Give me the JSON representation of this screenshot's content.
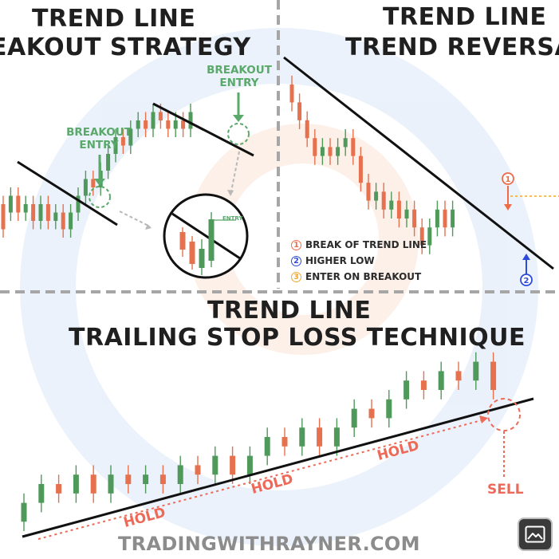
{
  "panels": {
    "top_left": {
      "title_line1": "TREND LINE",
      "title_line2": "EAKOUT STRATEGY",
      "breakout_label_1": "BREAKOUT\nENTRY",
      "breakout_label_2": "BREAKOUT\nENTRY",
      "mini_entry_label": "ENTRY"
    },
    "top_right": {
      "title_line1": "TREND LINE",
      "title_line2": "TREND REVERSA",
      "legend": [
        {
          "number": "1",
          "text": "BREAK OF TREND LINE",
          "color": "#ee6a48"
        },
        {
          "number": "2",
          "text": "HIGHER LOW",
          "color": "#2d4bd8"
        },
        {
          "number": "3",
          "text": "ENTER ON BREAKOUT",
          "color": "#f0a830"
        }
      ],
      "marker_1": "1",
      "marker_2": "2"
    },
    "bottom": {
      "title_line1": "TREND LINE",
      "title_line2": "TRAILING STOP LOSS TECHNIQUE",
      "hold_labels": [
        "HOLD",
        "HOLD",
        "HOLD"
      ],
      "sell_label": "SELL"
    }
  },
  "watermark": "TRADINGWITHRAYNER.COM",
  "colors": {
    "bull": "#4f9a5b",
    "bear": "#e5714e",
    "trendline": "#111111",
    "accent_green": "#5aa86a",
    "accent_red": "#ee6a58"
  },
  "icons": {
    "image_button": "image-icon"
  },
  "chart_data": [
    {
      "type": "candlestick",
      "panel": "top_left",
      "candles": [
        [
          "d",
          4,
          1,
          5,
          0
        ],
        [
          "u",
          3,
          5,
          6,
          2
        ],
        [
          "d",
          5,
          3,
          6,
          2
        ],
        [
          "u",
          3,
          4,
          5,
          2
        ],
        [
          "d",
          4,
          2,
          5,
          1
        ],
        [
          "u",
          2,
          4,
          5,
          1
        ],
        [
          "d",
          4,
          2,
          5,
          1
        ],
        [
          "u",
          2,
          3,
          4,
          1
        ],
        [
          "d",
          3,
          1,
          4,
          0
        ],
        [
          "u",
          1,
          3,
          4,
          0
        ],
        [
          "u",
          3,
          5,
          6,
          2
        ],
        [
          "u",
          5,
          7,
          8,
          4
        ],
        [
          "d",
          7,
          6,
          8,
          5
        ],
        [
          "u",
          6,
          8,
          9,
          5
        ],
        [
          "u",
          8,
          10,
          11,
          7
        ],
        [
          "u",
          10,
          12,
          13,
          9
        ],
        [
          "d",
          12,
          11,
          13,
          10
        ],
        [
          "u",
          11,
          13,
          14,
          10
        ],
        [
          "u",
          13,
          14,
          15,
          12
        ],
        [
          "d",
          14,
          13,
          15,
          12
        ],
        [
          "u",
          13,
          15,
          16,
          12
        ],
        [
          "d",
          15,
          14,
          16,
          13
        ],
        [
          "d",
          14,
          13,
          15,
          12
        ],
        [
          "u",
          13,
          14,
          15,
          12
        ],
        [
          "d",
          14,
          13,
          15,
          12
        ],
        [
          "u",
          13,
          15,
          16,
          12
        ]
      ]
    },
    {
      "type": "candlestick",
      "panel": "top_right",
      "candles": [
        [
          "d",
          20,
          18,
          21,
          17
        ],
        [
          "d",
          18,
          16,
          19,
          15
        ],
        [
          "d",
          16,
          14,
          17,
          13
        ],
        [
          "d",
          14,
          12,
          15,
          11
        ],
        [
          "u",
          12,
          13,
          14,
          11
        ],
        [
          "d",
          13,
          12,
          14,
          11
        ],
        [
          "u",
          12,
          13,
          14,
          11
        ],
        [
          "u",
          13,
          14,
          15,
          12
        ],
        [
          "d",
          14,
          12,
          15,
          11
        ],
        [
          "d",
          12,
          9,
          13,
          8
        ],
        [
          "d",
          9,
          7,
          10,
          6
        ],
        [
          "u",
          7,
          8,
          9,
          6
        ],
        [
          "d",
          8,
          6,
          9,
          5
        ],
        [
          "u",
          6,
          7,
          8,
          5
        ],
        [
          "d",
          7,
          5,
          8,
          4
        ],
        [
          "u",
          5,
          6,
          7,
          4
        ],
        [
          "d",
          6,
          4,
          7,
          3
        ],
        [
          "d",
          4,
          2,
          5,
          1
        ],
        [
          "u",
          2,
          4,
          5,
          1
        ],
        [
          "u",
          4,
          6,
          7,
          3
        ],
        [
          "d",
          6,
          4,
          7,
          3
        ],
        [
          "u",
          4,
          6,
          7,
          3
        ]
      ]
    },
    {
      "type": "candlestick",
      "panel": "bottom",
      "candles": [
        [
          "u",
          1,
          3,
          4,
          0
        ],
        [
          "u",
          3,
          5,
          6,
          2
        ],
        [
          "d",
          5,
          4,
          6,
          3
        ],
        [
          "u",
          4,
          6,
          7,
          3
        ],
        [
          "d",
          6,
          4,
          7,
          3
        ],
        [
          "u",
          4,
          6,
          7,
          3
        ],
        [
          "d",
          6,
          5,
          7,
          4
        ],
        [
          "u",
          5,
          6,
          7,
          4
        ],
        [
          "d",
          6,
          5,
          7,
          4
        ],
        [
          "u",
          5,
          7,
          8,
          4
        ],
        [
          "d",
          7,
          6,
          8,
          5
        ],
        [
          "u",
          6,
          8,
          9,
          5
        ],
        [
          "d",
          8,
          6,
          9,
          5
        ],
        [
          "u",
          6,
          8,
          9,
          5
        ],
        [
          "u",
          8,
          10,
          11,
          7
        ],
        [
          "d",
          10,
          9,
          11,
          8
        ],
        [
          "u",
          9,
          11,
          12,
          8
        ],
        [
          "d",
          11,
          9,
          12,
          8
        ],
        [
          "u",
          9,
          11,
          12,
          8
        ],
        [
          "u",
          11,
          13,
          14,
          10
        ],
        [
          "d",
          13,
          12,
          14,
          11
        ],
        [
          "u",
          12,
          14,
          15,
          11
        ],
        [
          "u",
          14,
          16,
          17,
          13
        ],
        [
          "d",
          16,
          15,
          17,
          14
        ],
        [
          "u",
          15,
          17,
          18,
          14
        ],
        [
          "d",
          17,
          16,
          18,
          15
        ],
        [
          "u",
          16,
          18,
          19,
          15
        ],
        [
          "d",
          18,
          15,
          19,
          14
        ]
      ]
    }
  ]
}
